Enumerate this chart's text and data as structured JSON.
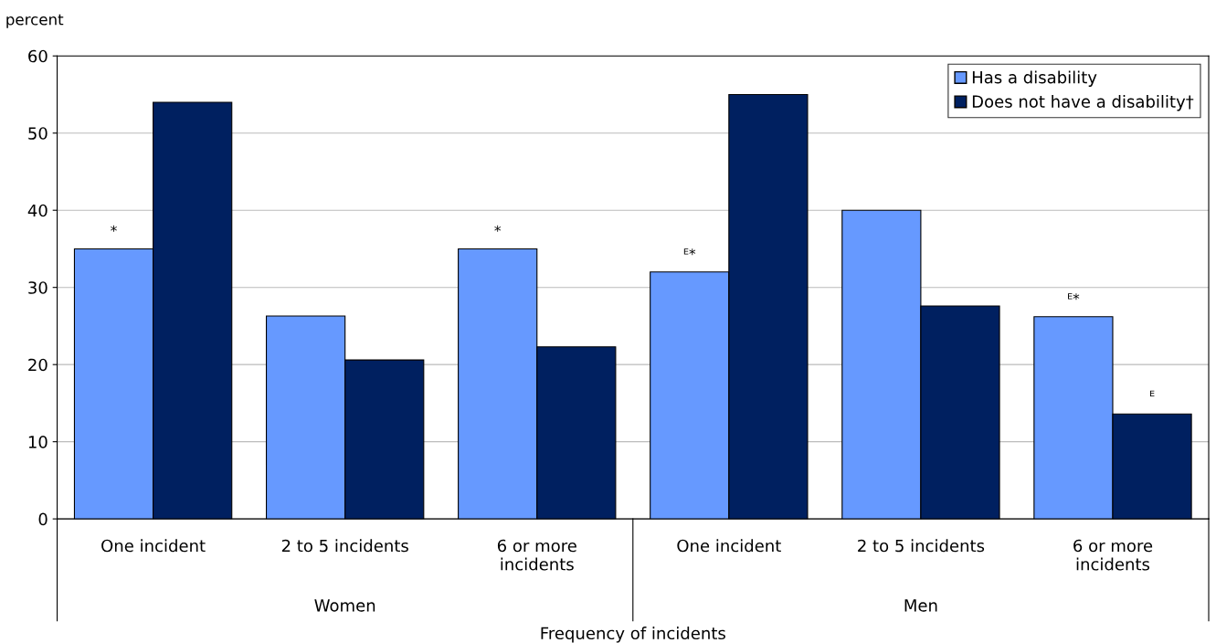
{
  "chart_data": {
    "type": "bar",
    "ylabel": "percent",
    "xlabel": "Frequency of incidents",
    "categories": [
      "One incident",
      "2 to 5 incidents",
      "6 or more\nincidents",
      "One incident",
      "2 to 5 incidents",
      "6 or more\nincidents"
    ],
    "series": [
      {
        "name": "Has a disability",
        "color": "#6699ff",
        "values": [
          35,
          26.3,
          35,
          32,
          40,
          26.2
        ],
        "value_labels": [
          "*",
          null,
          "*",
          "ᴱ*",
          null,
          "ᴱ*"
        ]
      },
      {
        "name": "Does not have a disability†",
        "color": "#002060",
        "values": [
          54,
          20.6,
          22.3,
          55,
          27.6,
          13.6
        ],
        "value_labels": [
          null,
          null,
          null,
          null,
          null,
          "ᴱ"
        ]
      }
    ],
    "annotations": [
      "Women",
      "Men"
    ],
    "ylim": [
      0,
      60
    ],
    "yticks": [
      0,
      10,
      20,
      30,
      40,
      50,
      60
    ],
    "grid": "y",
    "legend": "top right"
  }
}
